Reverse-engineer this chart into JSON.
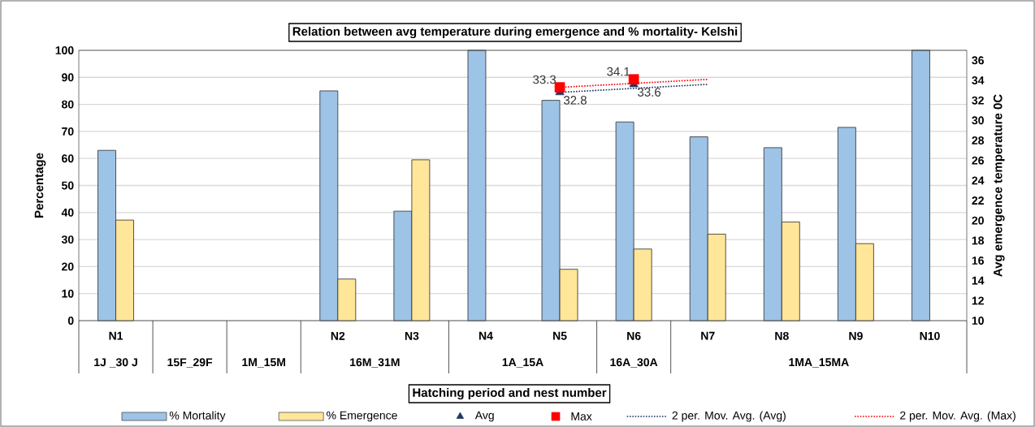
{
  "chart_data": {
    "type": "bar",
    "title": "Relation between avg temperature during emergence and % mortality- Kelshi",
    "xlabel": "Hatching period and nest number",
    "ylabel": "Percentage",
    "y2label": "Avg emergence temperature 0C",
    "categories": [
      "N1",
      null,
      null,
      "N2",
      "N3",
      "N4",
      "N5",
      "N6",
      "N7",
      "N8",
      "N9",
      "N10"
    ],
    "annotations": [
      "1J _30 J",
      "15F_29F",
      "1M_15M",
      "16M_31M",
      "1A_15A",
      "16A_30A",
      "1MA_15MA"
    ],
    "series": [
      {
        "name": "% Mortality",
        "color": "#9dc3e6",
        "values": [
          63,
          null,
          null,
          85,
          40.5,
          100,
          81.5,
          73.5,
          68,
          64,
          71.5,
          100
        ]
      },
      {
        "name": "% Emergence",
        "color": "#ffe699",
        "values": [
          37.2,
          null,
          null,
          15.4,
          59.5,
          null,
          19,
          26.5,
          32,
          36.5,
          28.5,
          null
        ]
      },
      {
        "name": "Avg",
        "type": "scatter",
        "axis": "y2",
        "marker": "triangle",
        "color": "#203864",
        "values": [
          null,
          null,
          null,
          null,
          null,
          null,
          32.8,
          33.6,
          null,
          null,
          null,
          null
        ],
        "value_labels": [
          null,
          null,
          null,
          null,
          null,
          null,
          "32.8",
          "33.6",
          null,
          null,
          null,
          null
        ]
      },
      {
        "name": "Max",
        "type": "scatter",
        "axis": "y2",
        "marker": "square",
        "color": "#ff0000",
        "values": [
          null,
          null,
          null,
          null,
          null,
          null,
          33.3,
          34.1,
          null,
          null,
          null,
          null
        ],
        "value_labels": [
          null,
          null,
          null,
          null,
          null,
          null,
          "33.3",
          "34.1",
          null,
          null,
          null,
          null
        ]
      },
      {
        "name": "2 per. Mov. Avg. (Avg)",
        "type": "line",
        "axis": "y2",
        "line_style": "dotted",
        "marker": "none",
        "color": "#203864",
        "x": [
          "N5",
          "N7"
        ],
        "values": [
          32.8,
          33.6
        ]
      },
      {
        "name": "2 per. Mov. Avg. (Max)",
        "type": "line",
        "axis": "y2",
        "line_style": "dotted",
        "marker": "none",
        "color": "#ff0000",
        "x": [
          "N5",
          "N7"
        ],
        "values": [
          33.3,
          34.1
        ]
      }
    ],
    "ylim": [
      0,
      100
    ],
    "yticks": [
      0,
      10,
      20,
      30,
      40,
      50,
      60,
      70,
      80,
      90,
      100
    ],
    "y2lim": [
      10,
      37
    ],
    "y2ticks": [
      10,
      12,
      14,
      16,
      18,
      20,
      22,
      24,
      26,
      28,
      30,
      32,
      34,
      36
    ],
    "grid": "y",
    "legend": "bottom"
  }
}
